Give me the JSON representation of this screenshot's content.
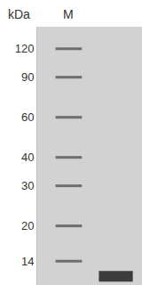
{
  "chart_data": {
    "type": "gel",
    "ylabel": "kDa",
    "log": "y",
    "grid": false,
    "ylim": [
      11,
      150
    ],
    "yticks": [
      120,
      90,
      60,
      40,
      30,
      20,
      14
    ],
    "lanes": [
      {
        "label": "M",
        "bands": [
          120,
          90,
          60,
          40,
          30,
          20,
          14
        ]
      },
      {
        "bands": [
          12
        ]
      }
    ]
  }
}
